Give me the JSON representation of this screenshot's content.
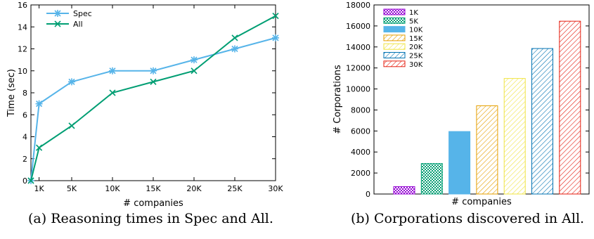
{
  "chart_data": [
    {
      "type": "line",
      "title": "",
      "xlabel": "# companies",
      "ylabel": "Time (sec)",
      "ylim": [
        0,
        16
      ],
      "yticks": [
        0,
        2,
        4,
        6,
        8,
        10,
        12,
        14,
        16
      ],
      "categories": [
        "",
        "1K",
        "5K",
        "10K",
        "15K",
        "20K",
        "25K",
        "30K"
      ],
      "x": [
        0,
        1,
        5,
        10,
        15,
        20,
        25,
        30
      ],
      "xlim": [
        0,
        30
      ],
      "legend_position": "top-left",
      "grid": false,
      "series": [
        {
          "name": "Spec",
          "color": "#56b4e9",
          "marker": "star",
          "values": [
            0,
            7,
            9,
            10,
            10,
            11,
            12,
            13
          ]
        },
        {
          "name": "All",
          "color": "#009e73",
          "marker": "x",
          "values": [
            0,
            3,
            5,
            8,
            9,
            10,
            13,
            15
          ]
        }
      ],
      "caption": "(a) Reasoning times in Spec and All."
    },
    {
      "type": "bar",
      "title": "",
      "xlabel": "# companies",
      "ylabel": "# Corporations",
      "ylim": [
        0,
        18000
      ],
      "yticks": [
        0,
        2000,
        4000,
        6000,
        8000,
        10000,
        12000,
        14000,
        16000,
        18000
      ],
      "legend_position": "top-left",
      "grid": false,
      "series": [
        {
          "name": "1K",
          "value": 700,
          "color": "#9400d3",
          "pattern": "checker"
        },
        {
          "name": "5K",
          "value": 2900,
          "color": "#009e73",
          "pattern": "checker"
        },
        {
          "name": "10K",
          "value": 5950,
          "color": "#56b4e9",
          "pattern": "solid"
        },
        {
          "name": "15K",
          "value": 8400,
          "color": "#e69f00",
          "pattern": "hatch"
        },
        {
          "name": "20K",
          "value": 11000,
          "color": "#f0e442",
          "pattern": "hatch"
        },
        {
          "name": "25K",
          "value": 13850,
          "color": "#0072b2",
          "pattern": "hatch"
        },
        {
          "name": "30K",
          "value": 16450,
          "color": "#e51e10",
          "pattern": "hatch"
        }
      ],
      "caption": "(b) Corporations discovered in All."
    }
  ]
}
